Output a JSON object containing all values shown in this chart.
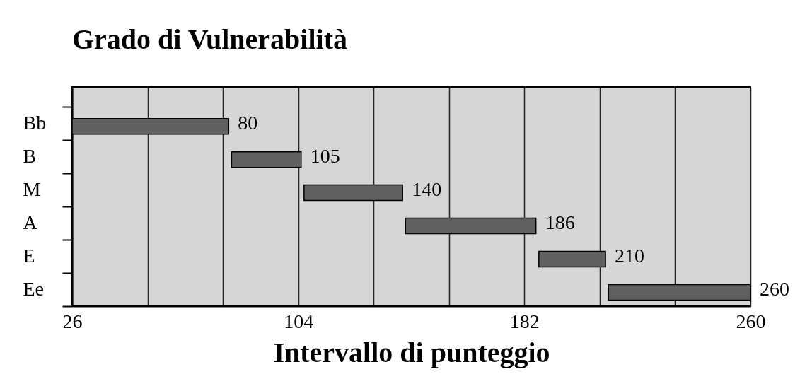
{
  "chart_data": {
    "type": "bar",
    "orientation": "horizontal",
    "title": "Grado di Vulnerabilità",
    "xlabel": "Intervallo di punteggio",
    "categories": [
      "Bb",
      "B",
      "M",
      "A",
      "E",
      "Ee"
    ],
    "base": [
      26,
      81,
      106,
      141,
      187,
      211
    ],
    "values": [
      54,
      24,
      34,
      45,
      23,
      49
    ],
    "value_labels": [
      "80",
      "105",
      "140",
      "186",
      "210",
      "260"
    ],
    "color": "#606060",
    "xlim": [
      26,
      260
    ],
    "xticks": [
      26,
      {
        "value": 52,
        "label": null
      },
      {
        "value": 78,
        "label": null
      },
      104,
      {
        "value": 130,
        "label": null
      },
      {
        "value": 156,
        "label": null
      },
      182,
      {
        "value": 208,
        "label": null
      },
      {
        "value": 234,
        "label": null
      },
      260
    ],
    "grid": "x"
  }
}
